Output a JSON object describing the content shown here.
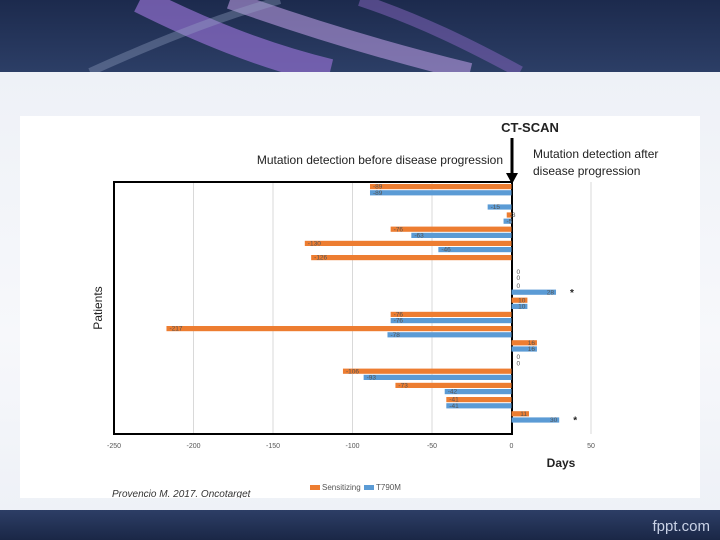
{
  "footer": {
    "brand": "fppt.com"
  },
  "annotations": {
    "ct_scan": "CT-SCAN",
    "before": "Mutation detection before disease progression",
    "after_line1": "Mutation detection after",
    "after_line2": "disease progression",
    "star": "*"
  },
  "source": "Provencio M. 2017. Oncotarget",
  "colors": {
    "sensitizing": "#ed7d31",
    "t790m": "#5b9bd5",
    "border": "#000000"
  },
  "chart_data": {
    "type": "bar",
    "orientation": "horizontal",
    "xlabel": "Days",
    "ylabel": "Patients",
    "xlim": [
      -250,
      50
    ],
    "x_ticks": [
      -250,
      -200,
      -150,
      -100,
      -50,
      0,
      50
    ],
    "grid": true,
    "legend_position": "bottom",
    "series": [
      {
        "name": "Sensitizing",
        "color": "#ed7d31",
        "values": [
          -89,
          null,
          -3,
          -76,
          -130,
          -126,
          0,
          0,
          10,
          -76,
          -217,
          16,
          0,
          -106,
          -73,
          -41,
          11
        ]
      },
      {
        "name": "T790M",
        "color": "#5b9bd5",
        "values": [
          -89,
          -15,
          -5,
          -63,
          -46,
          null,
          0,
          28,
          10,
          -76,
          -78,
          16,
          0,
          -93,
          -42,
          -41,
          30
        ]
      }
    ],
    "starred_rows": [
      7,
      16
    ]
  }
}
